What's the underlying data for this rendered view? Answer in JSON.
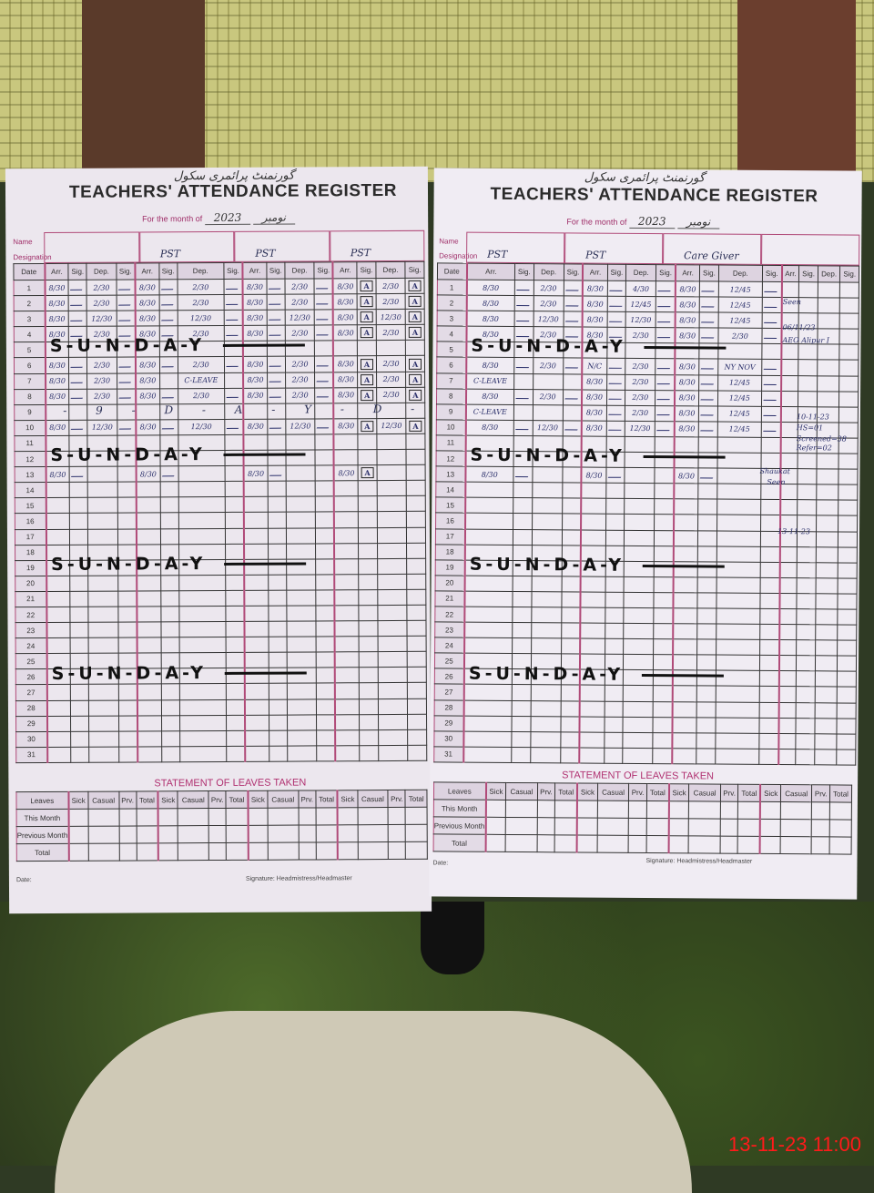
{
  "register_title": "TEACHERS' ATTENDANCE REGISTER",
  "month_label": "For the month of",
  "month_value": "نومبر",
  "year": "2023",
  "school_header": "گورنمنٹ پرائمری سکول",
  "name_label": "Name",
  "designation_label": "Designation",
  "col_headers": {
    "date": "Date",
    "arr": "Arr.",
    "sig": "Sig.",
    "dep": "Dep."
  },
  "statement_title": "STATEMENT OF LEAVES TAKEN",
  "leaves_headers": [
    "Sick",
    "Casual",
    "Prv.",
    "Total"
  ],
  "leaves_rows": [
    "Leaves",
    "This Month",
    "Previous Month",
    "Total"
  ],
  "date_label": "Date:",
  "signature_label": "Signature: Headmistress/Headmaster",
  "sunday_text": "S-U-N-D-A-Y",
  "holiday_text": "- 9 - D - A - Y -  D - A",
  "leave_text": "C-LEAVE",
  "left_page": {
    "designations": [
      "",
      "PST",
      "PST",
      "PST"
    ],
    "sunday_rows": [
      5,
      12,
      19,
      26
    ],
    "rows": {
      "1": [
        [
          "8/30",
          "2/30"
        ],
        [
          "8/30",
          "2/30"
        ],
        [
          "8/30",
          "2/30"
        ],
        [
          "8/30",
          "2/30"
        ]
      ],
      "2": [
        [
          "8/30",
          "2/30"
        ],
        [
          "8/30",
          "2/30"
        ],
        [
          "8/30",
          "2/30"
        ],
        [
          "8/30",
          "2/30"
        ]
      ],
      "3": [
        [
          "8/30",
          "12/30"
        ],
        [
          "8/30",
          "12/30"
        ],
        [
          "8/30",
          "12/30"
        ],
        [
          "8/30",
          "12/30"
        ]
      ],
      "4": [
        [
          "8/30",
          "2/30"
        ],
        [
          "8/30",
          "2/30"
        ],
        [
          "8/30",
          "2/30"
        ],
        [
          "8/30",
          "2/30"
        ]
      ],
      "6": [
        [
          "8/30",
          "2/30"
        ],
        [
          "8/30",
          "2/30"
        ],
        [
          "8/30",
          "2/30"
        ],
        [
          "8/30",
          "2/30"
        ]
      ],
      "7": [
        [
          "8/30",
          "2/30"
        ],
        [
          "8/30",
          "LEAVE"
        ],
        [
          "8/30",
          "2/30"
        ],
        [
          "8/30",
          "2/30"
        ]
      ],
      "8": [
        [
          "8/30",
          "2/30"
        ],
        [
          "8/30",
          "2/30"
        ],
        [
          "8/30",
          "2/30"
        ],
        [
          "8/30",
          "2/30"
        ]
      ],
      "10": [
        [
          "8/30",
          "12/30"
        ],
        [
          "8/30",
          "12/30"
        ],
        [
          "8/30",
          "12/30"
        ],
        [
          "8/30",
          "12/30"
        ]
      ],
      "13": [
        [
          "8/30",
          ""
        ],
        [
          "8/30",
          ""
        ],
        [
          "8/30",
          ""
        ],
        [
          "8/30",
          ""
        ]
      ]
    },
    "holiday_rows": [
      9
    ],
    "absent_mark": "A"
  },
  "right_page": {
    "designations": [
      "PST",
      "PST",
      "Care Giver",
      ""
    ],
    "sunday_rows": [
      5,
      12,
      19,
      26
    ],
    "rows": {
      "1": [
        [
          "8/30",
          "2/30"
        ],
        [
          "8/30",
          "4/30"
        ],
        [
          "8/30",
          "12/45"
        ],
        null
      ],
      "2": [
        [
          "8/30",
          "2/30"
        ],
        [
          "8/30",
          "12/45"
        ],
        [
          "8/30",
          "12/45"
        ],
        null
      ],
      "3": [
        [
          "8/30",
          "12/30"
        ],
        [
          "8/30",
          "12/30"
        ],
        [
          "8/30",
          "12/45"
        ],
        null
      ],
      "4": [
        [
          "8/30",
          "2/30"
        ],
        [
          "8/30",
          "2/30"
        ],
        [
          "8/30",
          "2/30"
        ],
        null
      ],
      "6": [
        [
          "8/30",
          "2/30"
        ],
        [
          "N/C",
          "2/30"
        ],
        [
          "8/30",
          "NY NOV"
        ],
        null
      ],
      "7": [
        [
          "LEAVE",
          ""
        ],
        [
          "8/30",
          "2/30"
        ],
        [
          "8/30",
          "12/45"
        ],
        null
      ],
      "8": [
        [
          "8/30",
          "2/30"
        ],
        [
          "8/30",
          "2/30"
        ],
        [
          "8/30",
          "12/45"
        ],
        null
      ],
      "9": [
        [
          "LEAVE",
          ""
        ],
        [
          "8/30",
          "2/30"
        ],
        [
          "8/30",
          "12/45"
        ],
        null
      ],
      "10": [
        [
          "8/30",
          "12/30"
        ],
        [
          "8/30",
          "12/30"
        ],
        [
          "8/30",
          "12/45"
        ],
        null
      ],
      "13": [
        [
          "8/30",
          ""
        ],
        [
          "8/30",
          ""
        ],
        [
          "8/30",
          ""
        ],
        null
      ]
    },
    "margin_notes": [
      "Seen",
      "06/11/23",
      "AEO Alipur I",
      "10-11-23",
      "HS=01",
      "Screened=38",
      "Refer=02",
      "Shaukat",
      "Seen",
      "13-11-23"
    ]
  },
  "timestamp": "13-11-23  11:00"
}
